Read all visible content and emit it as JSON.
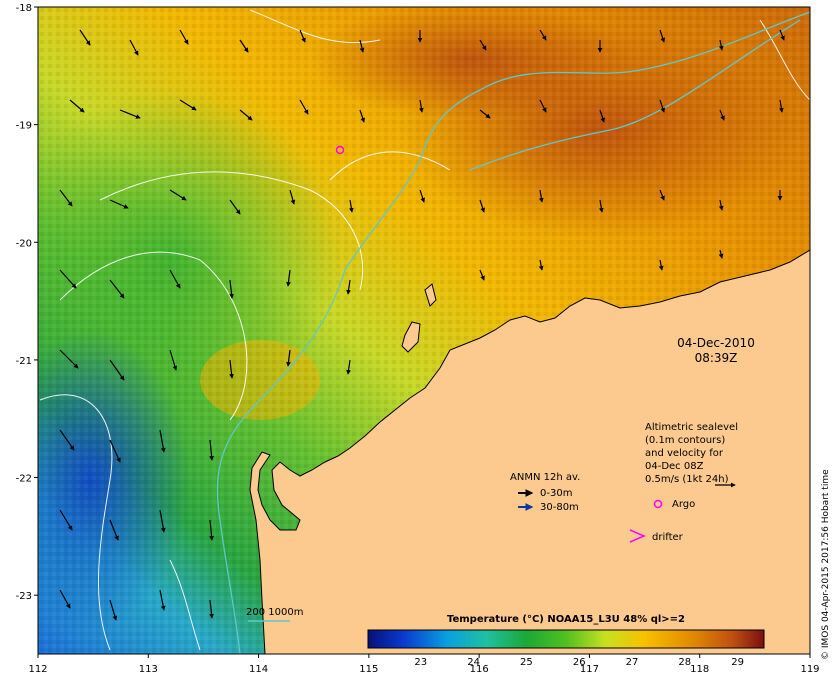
{
  "map": {
    "date": "04-Dec-2010",
    "time": "08:39Z",
    "lat_ticks": [
      "-18",
      "-19",
      "-20",
      "-21",
      "-22",
      "-23"
    ],
    "lon_ticks": [
      "112",
      "113",
      "114",
      "115",
      "116",
      "117",
      "118",
      "119"
    ],
    "lat_values": [
      -18,
      -19,
      -20,
      -21,
      -22,
      -23
    ],
    "lon_values": [
      112,
      113,
      114,
      115,
      116,
      117,
      118,
      119
    ],
    "lon_range": [
      112,
      119
    ],
    "lat_range": [
      -23.5,
      -18
    ]
  },
  "altimetry_note": {
    "line1": "Altimetric sealevel",
    "line2": "(0.1m contours)",
    "line3": "and velocity for",
    "line4": "04-Dec 08Z",
    "line5": "0.5m/s (1kt 24h)"
  },
  "legend": {
    "anmn_title": "ANMN 12h av.",
    "anmn_shallow": "0-30m",
    "anmn_deep": "30-80m",
    "argo": "Argo",
    "drifter": "drifter",
    "isobath": "200  1000m"
  },
  "colorbar": {
    "title": "Temperature (°C) NOAA15_L3U 48% ql>=2",
    "ticks": [
      "23",
      "24",
      "25",
      "26",
      "27",
      "28",
      "29"
    ],
    "tick_values": [
      23,
      24,
      25,
      26,
      27,
      28,
      29
    ],
    "range": [
      22,
      29.5
    ]
  },
  "credit": "© IMOS 04-Apr-2015 2017:56 Hobart time",
  "colors": {
    "land": "#fcc98f",
    "shallow_arrow": "#000000",
    "deep_arrow": "#0a3aa0",
    "argo": "#ff00ff",
    "isobath": "#5fc8c8",
    "contour": "#ffffff"
  }
}
